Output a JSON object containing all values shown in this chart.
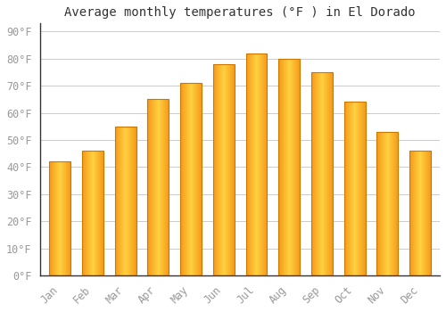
{
  "title": "Average monthly temperatures (°F ) in El Dorado",
  "months": [
    "Jan",
    "Feb",
    "Mar",
    "Apr",
    "May",
    "Jun",
    "Jul",
    "Aug",
    "Sep",
    "Oct",
    "Nov",
    "Dec"
  ],
  "values": [
    42,
    46,
    55,
    65,
    71,
    78,
    82,
    80,
    75,
    64,
    53,
    46
  ],
  "bar_color_center": "#FFD060",
  "bar_color_edge_inner": "#F5A020",
  "bar_border_color": "#CC7700",
  "background_color": "#FFFFFF",
  "grid_color": "#CCCCCC",
  "yticks": [
    0,
    10,
    20,
    30,
    40,
    50,
    60,
    70,
    80,
    90
  ],
  "ylim": [
    0,
    93
  ],
  "title_fontsize": 10,
  "tick_fontsize": 8.5,
  "tick_color": "#999999",
  "title_color": "#333333",
  "bar_width": 0.65
}
